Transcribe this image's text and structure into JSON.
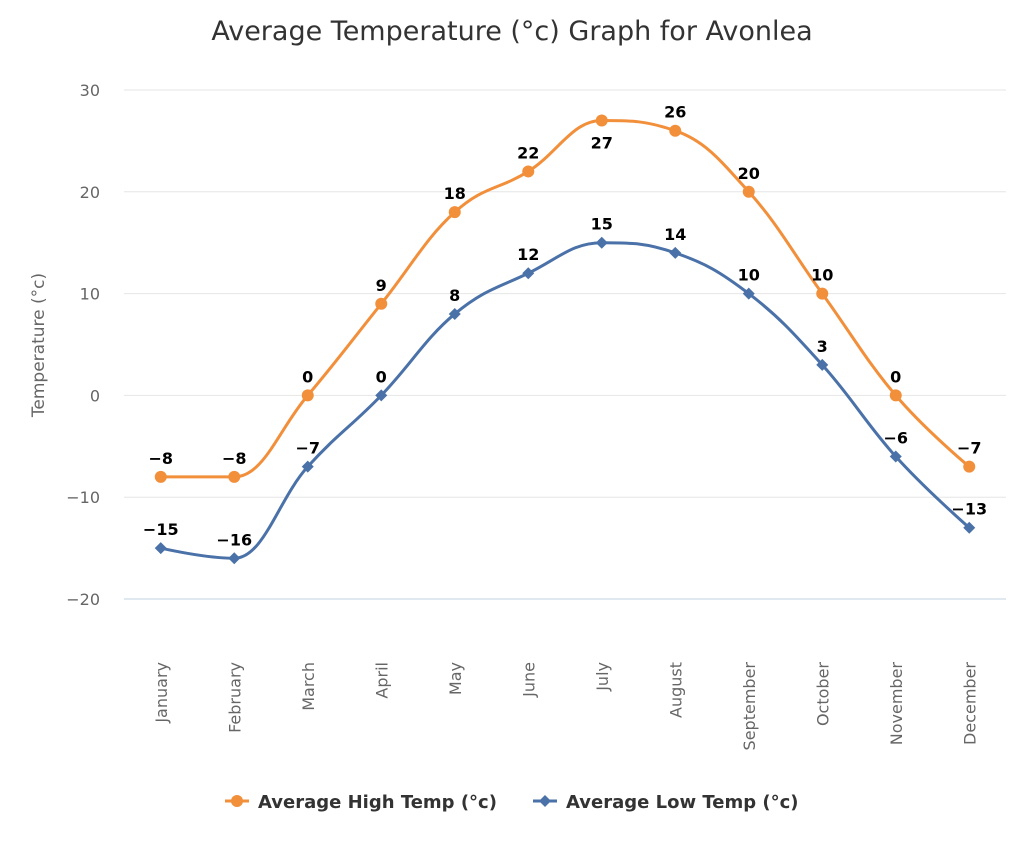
{
  "chart_data": {
    "type": "line",
    "title": "Average Temperature (°c) Graph for Avonlea",
    "xlabel": "",
    "ylabel": "Temperature (°c)",
    "categories": [
      "January",
      "February",
      "March",
      "April",
      "May",
      "June",
      "July",
      "August",
      "September",
      "October",
      "November",
      "December"
    ],
    "ylim": [
      -20,
      30
    ],
    "yticks": [
      30,
      20,
      10,
      0,
      -10,
      -20
    ],
    "ytick_labels": [
      "30",
      "20",
      "10",
      "0",
      "−10",
      "−20"
    ],
    "grid": true,
    "legend": "bottom",
    "series": [
      {
        "name": "Average High Temp (°c)",
        "color": "#f28f3b",
        "marker": "circle",
        "values": [
          -8,
          -8,
          0,
          9,
          18,
          22,
          27,
          26,
          20,
          10,
          0,
          -7
        ]
      },
      {
        "name": "Average Low Temp (°c)",
        "color": "#4a72a8",
        "marker": "diamond",
        "values": [
          -15,
          -16,
          -7,
          0,
          8,
          12,
          15,
          14,
          10,
          3,
          -6,
          -13
        ]
      }
    ]
  }
}
